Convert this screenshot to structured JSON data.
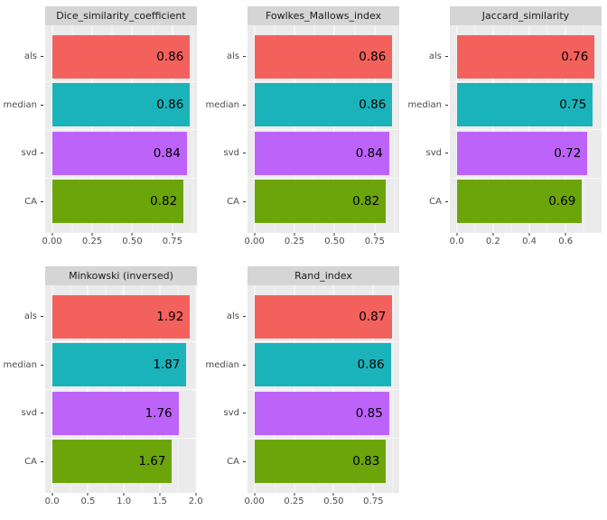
{
  "figure": {
    "background": "#FFFFFF",
    "layout": "2 rows x 3 columns facet grid, 5 panels"
  },
  "style": {
    "panel_bg": "#EBEBEB",
    "strip_bg": "#D5D5D5",
    "strip_text_color": "#1A1A1A",
    "axis_text_color": "#4D4D4D",
    "tick_color": "#333333",
    "grid_major": "#FFFFFF",
    "bar_label_color": "#000000",
    "bar_colors": [
      "#F3615D",
      "#1AB3BA",
      "#BD63FA",
      "#6BA50A"
    ]
  },
  "chart_data": [
    {
      "type": "bar",
      "orientation": "horizontal",
      "title": "Dice_similarity_coefficient",
      "categories": [
        "als",
        "median",
        "svd",
        "CA"
      ],
      "values": [
        0.86,
        0.86,
        0.84,
        0.82
      ],
      "value_labels": [
        "0.86",
        "0.86",
        "0.84",
        "0.82"
      ],
      "xticks": [
        0,
        0.25,
        0.5,
        0.75
      ],
      "xtick_labels": [
        "0.00",
        "0.25",
        "0.50",
        "0.75"
      ],
      "xlim": [
        -0.043,
        0.903
      ],
      "grid": true,
      "legend": "none"
    },
    {
      "type": "bar",
      "orientation": "horizontal",
      "title": "Fowlkes_Mallows_index",
      "categories": [
        "als",
        "median",
        "svd",
        "CA"
      ],
      "values": [
        0.86,
        0.86,
        0.84,
        0.82
      ],
      "value_labels": [
        "0.86",
        "0.86",
        "0.84",
        "0.82"
      ],
      "xticks": [
        0,
        0.25,
        0.5,
        0.75
      ],
      "xtick_labels": [
        "0.00",
        "0.25",
        "0.50",
        "0.75"
      ],
      "xlim": [
        -0.043,
        0.903
      ],
      "grid": true,
      "legend": "none"
    },
    {
      "type": "bar",
      "orientation": "horizontal",
      "title": "Jaccard_similarity",
      "categories": [
        "als",
        "median",
        "svd",
        "CA"
      ],
      "values": [
        0.76,
        0.75,
        0.72,
        0.69
      ],
      "value_labels": [
        "0.76",
        "0.75",
        "0.72",
        "0.69"
      ],
      "xticks": [
        0,
        0.2,
        0.4,
        0.6
      ],
      "xtick_labels": [
        "0.0",
        "0.2",
        "0.4",
        "0.6"
      ],
      "xlim": [
        -0.038,
        0.798
      ],
      "grid": true,
      "legend": "none"
    },
    {
      "type": "bar",
      "orientation": "horizontal",
      "title": "Minkowski (inversed)",
      "categories": [
        "als",
        "median",
        "svd",
        "CA"
      ],
      "values": [
        1.92,
        1.87,
        1.76,
        1.67
      ],
      "value_labels": [
        "1.92",
        "1.87",
        "1.76",
        "1.67"
      ],
      "xticks": [
        0,
        0.5,
        1,
        1.5,
        2
      ],
      "xtick_labels": [
        "0.0",
        "0.5",
        "1.0",
        "1.5",
        "2.0"
      ],
      "xlim": [
        -0.096,
        2.016
      ],
      "grid": true,
      "legend": "none"
    },
    {
      "type": "bar",
      "orientation": "horizontal",
      "title": "Rand_index",
      "categories": [
        "als",
        "median",
        "svd",
        "CA"
      ],
      "values": [
        0.87,
        0.86,
        0.85,
        0.83
      ],
      "value_labels": [
        "0.87",
        "0.86",
        "0.85",
        "0.83"
      ],
      "xticks": [
        0,
        0.25,
        0.5,
        0.75
      ],
      "xtick_labels": [
        "0.00",
        "0.25",
        "0.50",
        "0.75"
      ],
      "xlim": [
        -0.0435,
        0.9135
      ],
      "grid": true,
      "legend": "none"
    }
  ]
}
